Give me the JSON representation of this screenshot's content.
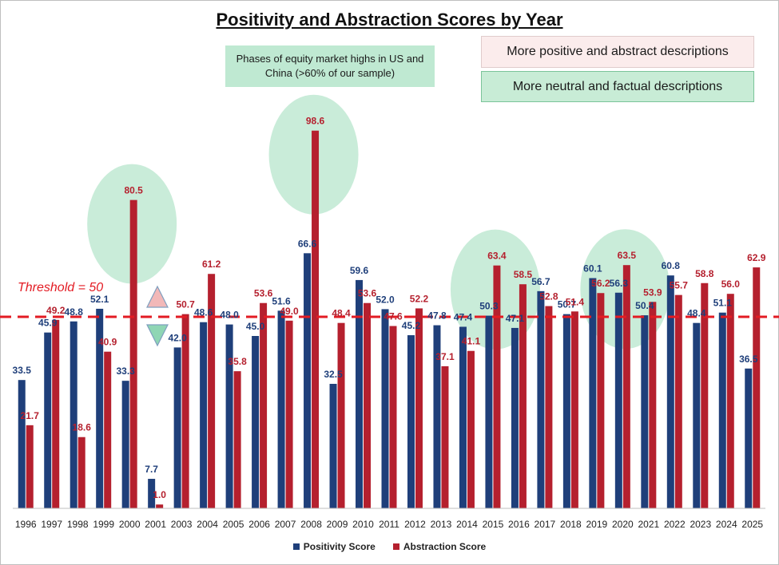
{
  "chart_data": {
    "type": "bar",
    "title": "Positivity and Abstraction Scores by Year",
    "categories": [
      "1996",
      "1997",
      "1998",
      "1999",
      "2000",
      "2001",
      "2003",
      "2004",
      "2005",
      "2006",
      "2007",
      "2008",
      "2009",
      "2010",
      "2011",
      "2012",
      "2013",
      "2014",
      "2015",
      "2016",
      "2017",
      "2018",
      "2019",
      "2020",
      "2021",
      "2022",
      "2023",
      "2024",
      "2025"
    ],
    "series": [
      {
        "name": "Positivity Score",
        "color": "#1f3f7a",
        "values": [
          33.5,
          45.9,
          48.8,
          52.1,
          33.3,
          7.7,
          42.0,
          48.6,
          48.0,
          45.0,
          51.6,
          66.6,
          32.5,
          59.6,
          52.0,
          45.2,
          47.8,
          47.4,
          50.3,
          47.1,
          56.7,
          50.7,
          60.1,
          56.3,
          50.4,
          60.8,
          48.4,
          51.1,
          36.5
        ],
        "labels": [
          "33.5",
          "45.9",
          "48.8",
          "52.1",
          "33.3",
          "7.7",
          "42.0",
          "48.6",
          "48.0",
          "45.0",
          "51.6",
          "66.6",
          "32.5",
          "59.6",
          "52.0",
          "45.2",
          "47.8",
          "47.4",
          "50.3",
          "47.1",
          "56.7",
          "50.7",
          "60.1",
          "56.3",
          "50.4",
          "60.8",
          "48.4",
          "51.1",
          "36.5"
        ]
      },
      {
        "name": "Abstraction Score",
        "color": "#b5202e",
        "values": [
          21.7,
          49.2,
          18.6,
          40.9,
          80.5,
          1.0,
          50.7,
          61.2,
          35.8,
          53.6,
          49.0,
          98.6,
          48.4,
          53.6,
          47.6,
          52.2,
          37.1,
          41.1,
          63.4,
          58.5,
          52.8,
          51.4,
          56.2,
          63.5,
          53.9,
          55.7,
          58.8,
          56.0,
          62.9
        ],
        "labels": [
          "21.7",
          "49.2",
          "18.6",
          "40.9",
          "80.5",
          "1.0",
          "50.7",
          "61.2",
          "35.8",
          "53.6",
          "49.0",
          "98.6",
          "48.4",
          "53.6",
          "47.6",
          "52.2",
          "37.1",
          "41.1",
          "63.4",
          "58.5",
          "52.8",
          "51.4",
          "56.2",
          "63.5",
          "53.9",
          "55.7",
          "58.8",
          "56.0",
          "62.9"
        ]
      }
    ],
    "ylim": [
      0,
      110
    ],
    "threshold": {
      "value": 50,
      "label": "Threshold = 50",
      "color": "#e31b23"
    },
    "highlight_years": [
      "2000",
      "2008",
      "2015",
      "2020"
    ],
    "grid": false,
    "legend_position": "bottom"
  },
  "annotations": {
    "phase_box": "Phases of equity market highs in US and China (>60% of our sample)",
    "positive_box": "More positive and abstract descriptions",
    "neutral_box": "More neutral and factual descriptions"
  },
  "colors": {
    "positivity": "#1f3f7a",
    "abstraction": "#b5202e",
    "threshold": "#e31b23",
    "highlight_ellipse": "#bfe9d2",
    "up_triangle": "#f2b8b8",
    "down_triangle": "#8fd6b4"
  },
  "icons": {
    "up": "up-triangle-icon",
    "down": "down-triangle-icon"
  }
}
